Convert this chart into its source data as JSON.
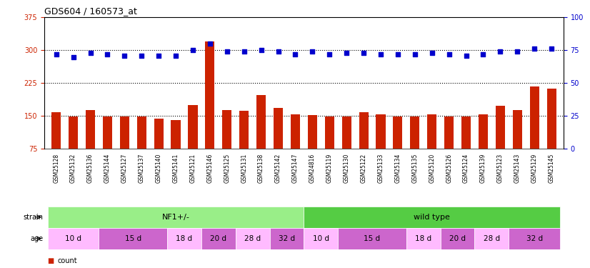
{
  "title": "GDS604 / 160573_at",
  "samples": [
    "GSM25128",
    "GSM25132",
    "GSM25136",
    "GSM25144",
    "GSM25127",
    "GSM25137",
    "GSM25140",
    "GSM25141",
    "GSM25121",
    "GSM25146",
    "GSM25125",
    "GSM25131",
    "GSM25138",
    "GSM25142",
    "GSM25147",
    "GSM24816",
    "GSM25119",
    "GSM25130",
    "GSM25122",
    "GSM25133",
    "GSM25134",
    "GSM25135",
    "GSM25120",
    "GSM25126",
    "GSM25124",
    "GSM25139",
    "GSM25123",
    "GSM25143",
    "GSM25129",
    "GSM25145"
  ],
  "counts": [
    158,
    148,
    163,
    148,
    148,
    148,
    143,
    141,
    174,
    320,
    163,
    162,
    198,
    168,
    153,
    152,
    148,
    148,
    158,
    153,
    148,
    148,
    153,
    148,
    148,
    153,
    173,
    163,
    218,
    213
  ],
  "percentiles": [
    72,
    70,
    73,
    72,
    71,
    71,
    71,
    71,
    75,
    80,
    74,
    74,
    75,
    74,
    72,
    74,
    72,
    73,
    73,
    72,
    72,
    72,
    73,
    72,
    71,
    72,
    74,
    74,
    76,
    76
  ],
  "strain_groups": [
    {
      "label": "NF1+/-",
      "start": 0,
      "end": 15,
      "color": "#99ee88"
    },
    {
      "label": "wild type",
      "start": 15,
      "end": 30,
      "color": "#55cc44"
    }
  ],
  "age_groups": [
    {
      "label": "10 d",
      "start": 0,
      "end": 3,
      "color": "#ffbbff"
    },
    {
      "label": "15 d",
      "start": 3,
      "end": 7,
      "color": "#cc66cc"
    },
    {
      "label": "18 d",
      "start": 7,
      "end": 9,
      "color": "#ffbbff"
    },
    {
      "label": "20 d",
      "start": 9,
      "end": 11,
      "color": "#cc66cc"
    },
    {
      "label": "28 d",
      "start": 11,
      "end": 13,
      "color": "#ffbbff"
    },
    {
      "label": "32 d",
      "start": 13,
      "end": 15,
      "color": "#cc66cc"
    },
    {
      "label": "10 d",
      "start": 15,
      "end": 17,
      "color": "#ffbbff"
    },
    {
      "label": "15 d",
      "start": 17,
      "end": 21,
      "color": "#cc66cc"
    },
    {
      "label": "18 d",
      "start": 21,
      "end": 23,
      "color": "#ffbbff"
    },
    {
      "label": "20 d",
      "start": 23,
      "end": 25,
      "color": "#cc66cc"
    },
    {
      "label": "28 d",
      "start": 25,
      "end": 27,
      "color": "#ffbbff"
    },
    {
      "label": "32 d",
      "start": 27,
      "end": 30,
      "color": "#cc66cc"
    }
  ],
  "bar_color": "#cc2200",
  "dot_color": "#0000cc",
  "ylim_left": [
    75,
    375
  ],
  "ylim_right": [
    0,
    100
  ],
  "yticks_left": [
    75,
    150,
    225,
    300,
    375
  ],
  "yticks_right": [
    0,
    25,
    50,
    75,
    100
  ],
  "grid_values": [
    150,
    225,
    300
  ],
  "xlim": [
    -0.7,
    29.7
  ],
  "label_bg": "#cccccc",
  "plot_bg": "#ffffff"
}
